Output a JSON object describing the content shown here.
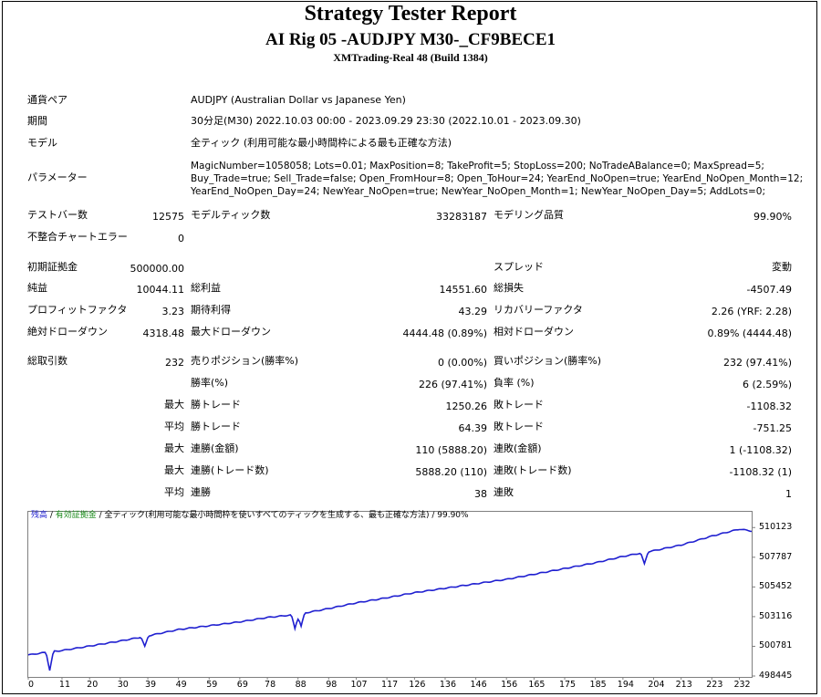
{
  "header": {
    "title": "Strategy Tester Report",
    "subtitle": "AI Rig 05 -AUDJPY M30-_CF9BECE1",
    "server": "XMTrading-Real 48 (Build 1384)"
  },
  "info": {
    "symbol_label": "通貨ペア",
    "symbol_value": "AUDJPY (Australian Dollar vs Japanese Yen)",
    "period_label": "期間",
    "period_value": "30分足(M30) 2022.10.03 00:00 - 2023.09.29 23:30 (2022.10.01 - 2023.09.30)",
    "model_label": "モデル",
    "model_value": "全ティック (利用可能な最小時間枠による最も正確な方法)",
    "params_label": "パラメーター",
    "params_lines": [
      "MagicNumber=1058058; Lots=0.01; MaxPosition=8; TakeProfit=5; StopLoss=200; NoTradeABalance=0; MaxSpread=5;",
      "Buy_Trade=true; Sell_Trade=false; Open_FromHour=8; Open_ToHour=24; YearEnd_NoOpen=true; YearEnd_NoOpen_Month=12;",
      "YearEnd_NoOpen_Day=24; NewYear_NoOpen=true; NewYear_NoOpen_Month=1; NewYear_NoOpen_Day=5; AddLots=0;"
    ]
  },
  "stats": {
    "bars_label": "テストバー数",
    "bars_value": "12575",
    "ticks_label": "モデルティック数",
    "ticks_value": "33283187",
    "quality_label": "モデリング品質",
    "quality_value": "99.90%",
    "mismatch_label": "不整合チャートエラー",
    "mismatch_value": "0",
    "deposit_label": "初期証拠金",
    "deposit_value": "500000.00",
    "spread_label": "スプレッド",
    "spread_value": "変動",
    "net_label": "純益",
    "net_value": "10044.11",
    "gross_profit_label": "総利益",
    "gross_profit_value": "14551.60",
    "gross_loss_label": "総損失",
    "gross_loss_value": "-4507.49",
    "pf_label": "プロフィットファクタ",
    "pf_value": "3.23",
    "expected_label": "期待利得",
    "expected_value": "43.29",
    "recovery_label": "リカバリーファクタ",
    "recovery_value": "2.26 (YRF: 2.28)",
    "abs_dd_label": "絶対ドローダウン",
    "abs_dd_value": "4318.48",
    "max_dd_label": "最大ドローダウン",
    "max_dd_value": "4444.48 (0.89%)",
    "rel_dd_label": "相対ドローダウン",
    "rel_dd_value": "0.89% (4444.48)",
    "trades_label": "総取引数",
    "trades_value": "232",
    "short_label": "売りポジション(勝率%)",
    "short_value": "0 (0.00%)",
    "long_label": "買いポジション(勝率%)",
    "long_value": "232 (97.41%)",
    "winrate_label": "勝率(%)",
    "winrate_value": "226 (97.41%)",
    "lossrate_label": "負率 (%)",
    "lossrate_value": "6 (2.59%)",
    "max_label": "最大",
    "avg_label": "平均",
    "largest_win_label": "勝トレード",
    "largest_win_value": "1250.26",
    "largest_loss_label": "敗トレード",
    "largest_loss_value": "-1108.32",
    "avg_win_label": "勝トレード",
    "avg_win_value": "64.39",
    "avg_loss_label": "敗トレード",
    "avg_loss_value": "-751.25",
    "max_consec_wins_amt_label": "連勝(金額)",
    "max_consec_wins_amt_value": "110 (5888.20)",
    "max_consec_losses_amt_label": "連敗(金額)",
    "max_consec_losses_amt_value": "1 (-1108.32)",
    "max_consec_profit_label": "連勝(トレード数)",
    "max_consec_profit_value": "5888.20 (110)",
    "max_consec_loss_label": "連敗(トレード数)",
    "max_consec_loss_value": "-1108.32 (1)",
    "avg_consec_wins_label": "連勝",
    "avg_consec_wins_value": "38",
    "avg_consec_losses_label": "連敗",
    "avg_consec_losses_value": "1"
  },
  "chart_data": {
    "type": "line",
    "legend_balance": "残高",
    "legend_sep1": " / ",
    "legend_equity": "有効証拠金",
    "legend_rest": " / 全ティック(利用可能な最小時間枠を使いすべてのティックを生成する、最も正確な方法) / 99.90%",
    "color_balance": "#1f1fd0",
    "color_equity": "#1a8a1a",
    "ylim": [
      498445,
      511290
    ],
    "xlim": [
      0,
      236
    ],
    "y_ticks": [
      "510123",
      "507787",
      "505452",
      "503116",
      "500781",
      "498445"
    ],
    "y_tick_values": [
      510123,
      507787,
      505452,
      503116,
      500781,
      498445
    ],
    "x_ticks": [
      "0",
      "11",
      "20",
      "30",
      "39",
      "49",
      "59",
      "69",
      "78",
      "88",
      "98",
      "107",
      "117",
      "126",
      "136",
      "146",
      "156",
      "165",
      "175",
      "185",
      "194",
      "204",
      "213",
      "223",
      "232"
    ],
    "x_tick_values": [
      0,
      11,
      20,
      30,
      39,
      49,
      59,
      69,
      78,
      88,
      98,
      107,
      117,
      126,
      136,
      146,
      156,
      165,
      175,
      185,
      194,
      204,
      213,
      223,
      232
    ],
    "balance": [
      [
        0,
        500100
      ],
      [
        7,
        500350
      ],
      [
        11,
        500450
      ],
      [
        20,
        500800
      ],
      [
        30,
        501200
      ],
      [
        39,
        501600
      ],
      [
        49,
        502100
      ],
      [
        59,
        502400
      ],
      [
        69,
        502700
      ],
      [
        78,
        503050
      ],
      [
        88,
        503300
      ],
      [
        98,
        503750
      ],
      [
        107,
        504200
      ],
      [
        117,
        504600
      ],
      [
        126,
        505000
      ],
      [
        136,
        505350
      ],
      [
        146,
        505700
      ],
      [
        156,
        506050
      ],
      [
        165,
        506450
      ],
      [
        175,
        506900
      ],
      [
        185,
        507350
      ],
      [
        194,
        507850
      ],
      [
        204,
        508300
      ],
      [
        213,
        508750
      ],
      [
        223,
        509450
      ],
      [
        232,
        510000
      ],
      [
        236,
        509850
      ]
    ],
    "dips": [
      [
        7,
        500350,
        -1450
      ],
      [
        38,
        501550,
        -800
      ],
      [
        87,
        503230,
        -1100
      ],
      [
        89,
        503260,
        -1000
      ],
      [
        201,
        508050,
        -900
      ]
    ]
  }
}
